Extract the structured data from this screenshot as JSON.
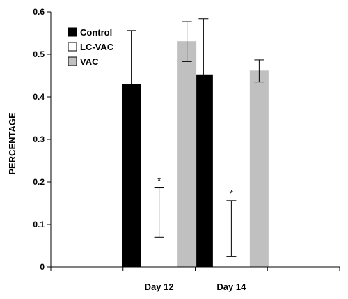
{
  "chart_data": {
    "type": "bar",
    "categories": [
      "",
      "Day 12",
      "Day 14",
      ""
    ],
    "series": [
      {
        "name": "Control",
        "color": "#000000",
        "values": [
          null,
          0.43,
          0.452,
          null
        ],
        "error": [
          null,
          0.126,
          0.132,
          null
        ]
      },
      {
        "name": "LC-VAC",
        "color": "#ffffff",
        "values": [
          null,
          0.128,
          0.09,
          null
        ],
        "error": [
          null,
          0.058,
          0.066,
          null
        ]
      },
      {
        "name": "VAC",
        "color": "#c0c0c0",
        "values": [
          null,
          0.53,
          0.461,
          null
        ],
        "error": [
          null,
          0.047,
          0.026,
          null
        ]
      }
    ],
    "ylabel": "PERCENTAGE",
    "xlabel": "",
    "ylim": [
      0,
      0.6
    ],
    "yticks": [
      "0",
      "0.1",
      "0.2",
      "0.3",
      "0.4",
      "0.5",
      "0.6"
    ],
    "annotations": [
      {
        "text": "*",
        "category": "Day 12",
        "series": "LC-VAC"
      },
      {
        "text": "*",
        "category": "Day 14",
        "series": "LC-VAC"
      }
    ],
    "legend": "top-left",
    "grid": false
  }
}
